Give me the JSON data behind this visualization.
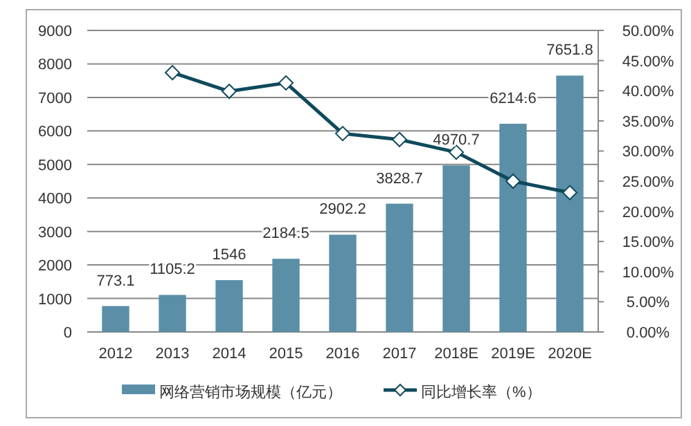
{
  "chart_data": {
    "type": "bar",
    "categories": [
      "2012",
      "2013",
      "2014",
      "2015",
      "2016",
      "2017",
      "2018E",
      "2019E",
      "2020E"
    ],
    "series": [
      {
        "name": "网络营销市场规模（亿元）",
        "color": "#5a8fa7",
        "values": [
          773.1,
          1105.2,
          1546,
          2184.5,
          2902.2,
          3828.7,
          4970.7,
          6214.6,
          7651.8
        ],
        "value_labels": [
          "773.1",
          "1105.2",
          "1546",
          "2184.5",
          "2902.2",
          "3828.7",
          "4970.7",
          "6214.6",
          "7651.8"
        ]
      },
      {
        "name": "同比增长率（%）",
        "type": "line",
        "axis": "y2",
        "color": "#0f4a5b",
        "marker": "diamond",
        "values": [
          null,
          43.0,
          39.9,
          41.3,
          32.9,
          31.9,
          29.8,
          25.0,
          23.1
        ]
      }
    ],
    "ylim": [
      0,
      9000
    ],
    "yticks": [
      0,
      1000,
      2000,
      3000,
      4000,
      5000,
      6000,
      7000,
      8000,
      9000
    ],
    "y2lim": [
      0,
      50
    ],
    "y2ticks": [
      {
        "value": 0,
        "label": "0.00%"
      },
      {
        "value": 5,
        "label": "5.00%"
      },
      {
        "value": 10,
        "label": "10.00%"
      },
      {
        "value": 15,
        "label": "15.00%"
      },
      {
        "value": 20,
        "label": "20.00%"
      },
      {
        "value": 25,
        "label": "25.00%"
      },
      {
        "value": 30,
        "label": "30.00%"
      },
      {
        "value": 35,
        "label": "35.00%"
      },
      {
        "value": 40,
        "label": "40.00%"
      },
      {
        "value": 45,
        "label": "45.00%"
      },
      {
        "value": 50,
        "label": "50.00%"
      }
    ],
    "grid": "y",
    "legend": "bottom"
  }
}
